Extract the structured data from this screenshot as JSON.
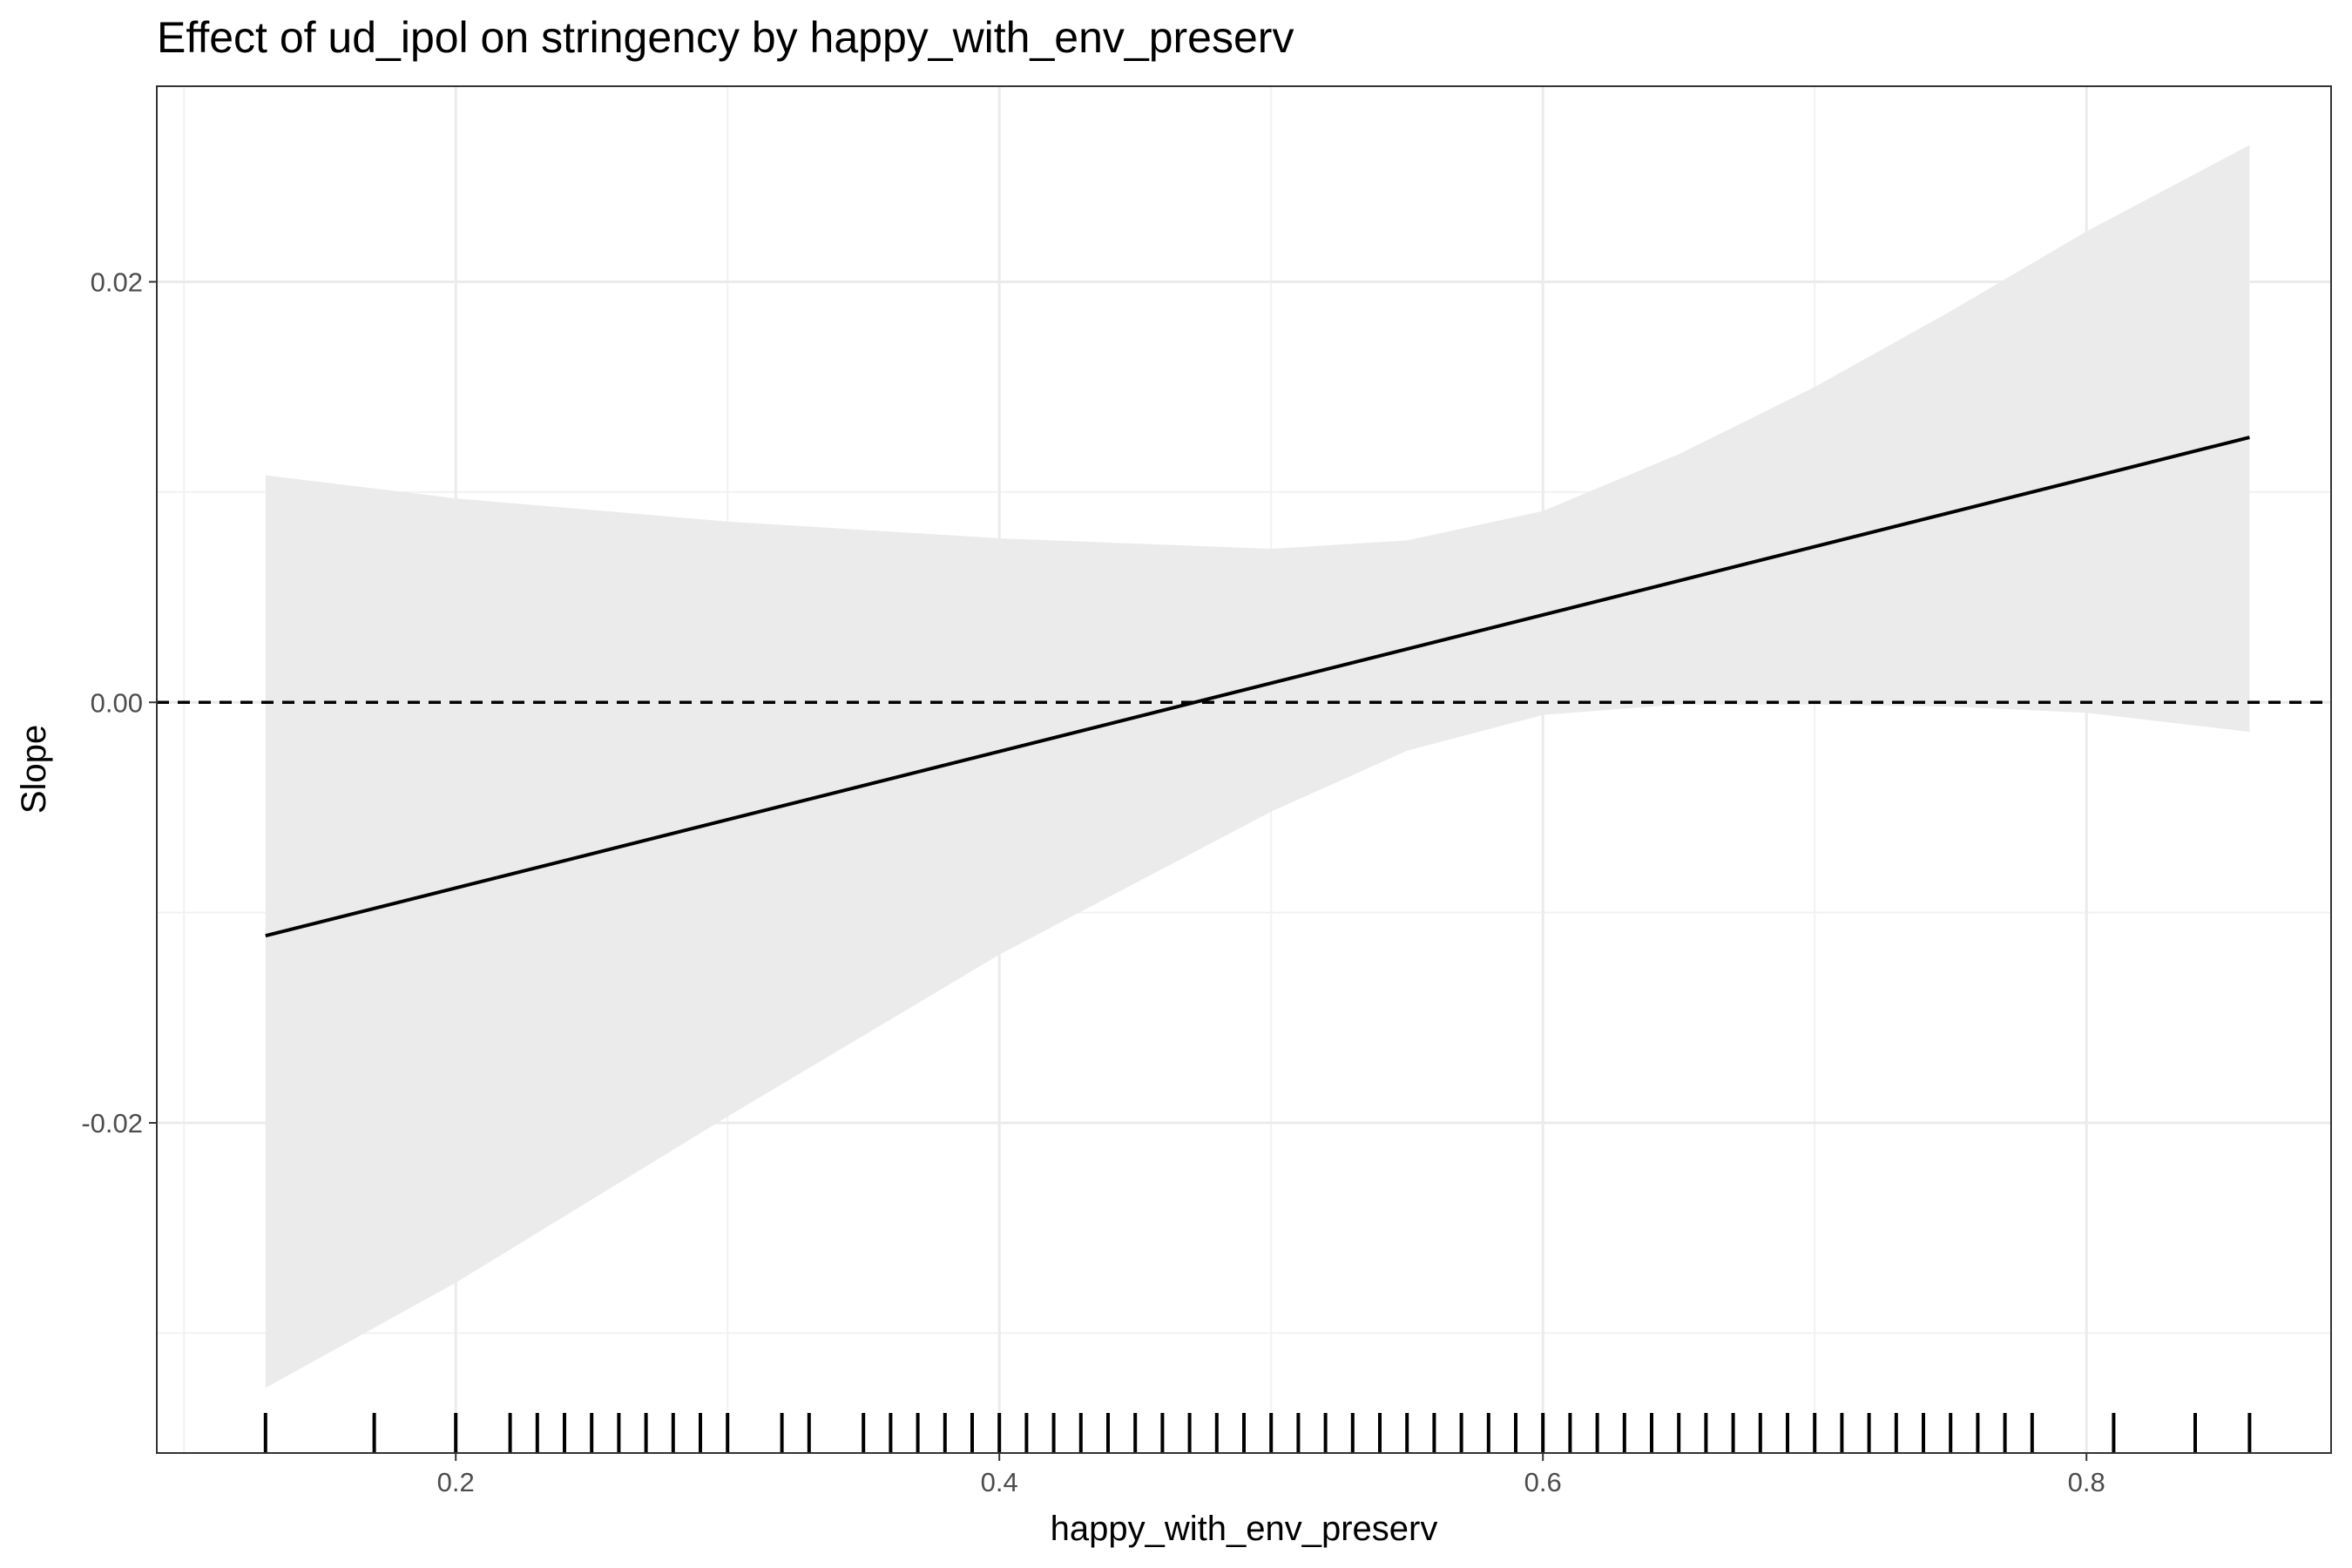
{
  "chart_data": {
    "type": "line",
    "title": "Effect of ud_ipol on stringency by happy_with_env_preserv",
    "xlabel": "happy_with_env_preserv",
    "ylabel": "Slope",
    "xlim": [
      0.09,
      0.89
    ],
    "ylim": [
      -0.0357,
      0.0293
    ],
    "x_ticks": [
      {
        "value": 0.2,
        "label": "0.2"
      },
      {
        "value": 0.4,
        "label": "0.4"
      },
      {
        "value": 0.6,
        "label": "0.6"
      },
      {
        "value": 0.8,
        "label": "0.8"
      }
    ],
    "y_ticks": [
      {
        "value": -0.02,
        "label": "-0.02"
      },
      {
        "value": 0.0,
        "label": "0.00"
      },
      {
        "value": 0.02,
        "label": "0.02"
      }
    ],
    "x_minor_breaks": [
      0.1,
      0.3,
      0.5,
      0.7
    ],
    "y_minor_breaks": [
      -0.03,
      -0.01,
      0.01
    ],
    "grid": true,
    "reference_line": {
      "y": 0.0,
      "style": "dashed",
      "color": "#000000"
    },
    "series": [
      {
        "type": "line",
        "color": "#000000",
        "x": [
          0.13,
          0.86
        ],
        "y": [
          -0.0111,
          0.0126
        ]
      }
    ],
    "confidence_band": {
      "color": "#ebebeb",
      "x": [
        0.13,
        0.2,
        0.3,
        0.4,
        0.5,
        0.55,
        0.6,
        0.65,
        0.7,
        0.75,
        0.8,
        0.86
      ],
      "lower": [
        -0.0326,
        -0.0276,
        -0.0197,
        -0.012,
        -0.0052,
        -0.0023,
        -0.0006,
        -0.0001,
        -0.0001,
        -0.0002,
        -0.0005,
        -0.0014
      ],
      "upper": [
        0.0108,
        0.0097,
        0.0086,
        0.0078,
        0.0073,
        0.0077,
        0.0091,
        0.0118,
        0.015,
        0.0186,
        0.0224,
        0.0265
      ]
    },
    "rug_x": [
      0.13,
      0.17,
      0.2,
      0.22,
      0.23,
      0.24,
      0.25,
      0.26,
      0.27,
      0.28,
      0.29,
      0.3,
      0.32,
      0.33,
      0.35,
      0.36,
      0.37,
      0.38,
      0.39,
      0.4,
      0.41,
      0.42,
      0.43,
      0.44,
      0.45,
      0.46,
      0.47,
      0.48,
      0.49,
      0.5,
      0.51,
      0.52,
      0.53,
      0.54,
      0.55,
      0.56,
      0.57,
      0.58,
      0.59,
      0.6,
      0.61,
      0.62,
      0.63,
      0.64,
      0.65,
      0.66,
      0.67,
      0.68,
      0.69,
      0.7,
      0.71,
      0.72,
      0.73,
      0.74,
      0.75,
      0.76,
      0.77,
      0.78,
      0.81,
      0.84,
      0.86
    ]
  }
}
